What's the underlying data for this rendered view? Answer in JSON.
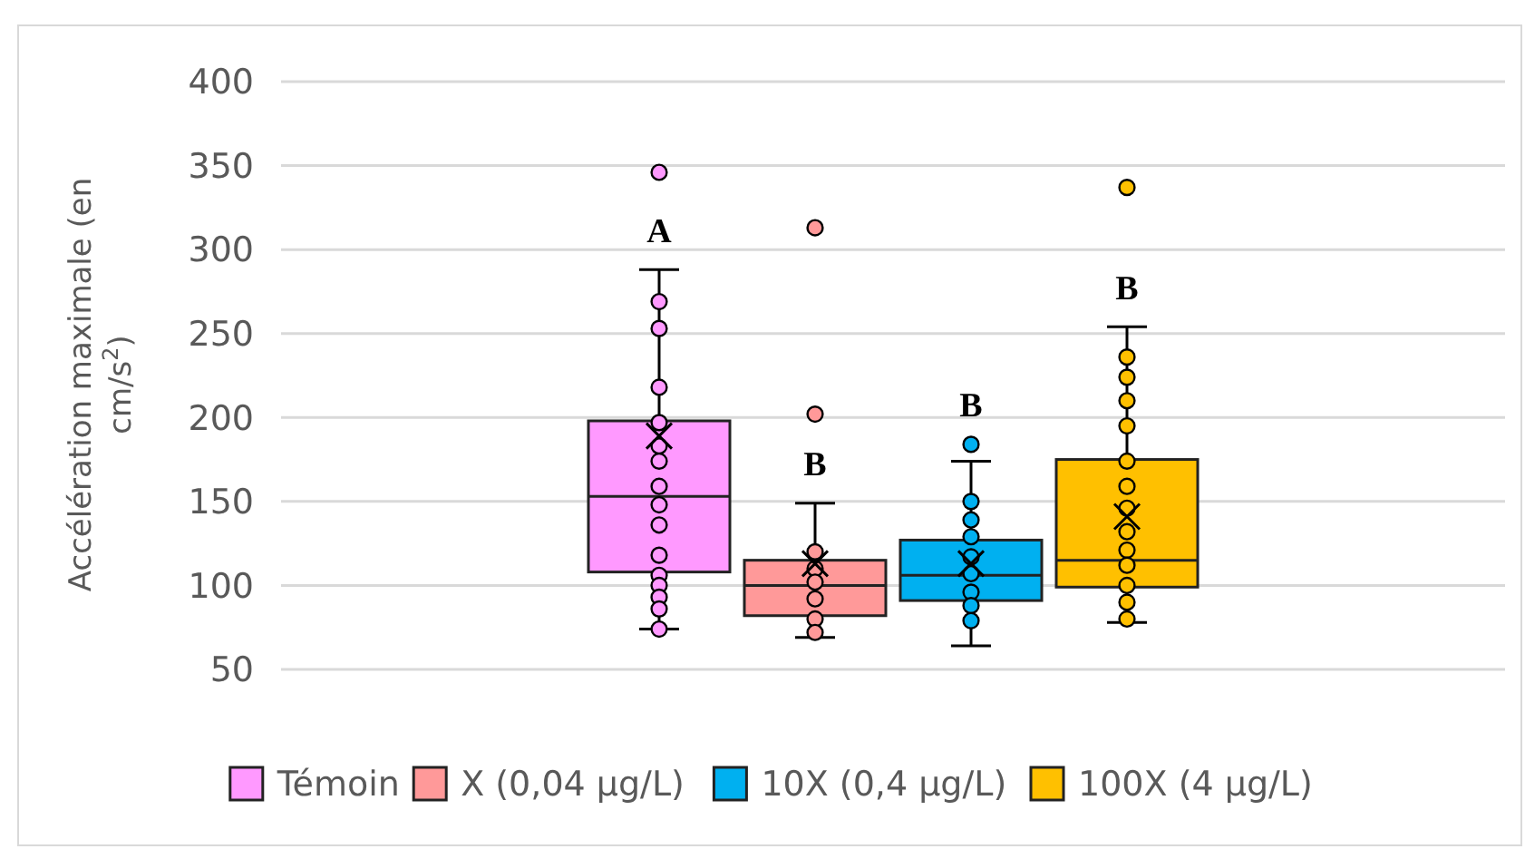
{
  "chart_data": {
    "type": "box",
    "ylabel": "Accélération maximale (en cm/s$^{2}$)",
    "categories": [
      null
    ],
    "ylim": [
      50,
      400
    ],
    "yticks": [
      50,
      100,
      150,
      200,
      250,
      300,
      350,
      400
    ],
    "grid": "y",
    "legend": "bottom",
    "marker": "circle",
    "series": [
      {
        "name": "Témoin",
        "color": "#ff99ff",
        "boxes": [
          {
            "low": 74,
            "q1": 108,
            "median": 153,
            "q3": 198,
            "high": 288,
            "mean": 189,
            "outliers": [
              346,
              269,
              253,
              218,
              197,
              183,
              174,
              159,
              148,
              136,
              118,
              106,
              100,
              93,
              86,
              74
            ]
          }
        ]
      },
      {
        "name": "X (0,04 µg/L)",
        "color": "#ff9999",
        "boxes": [
          {
            "low": 69,
            "q1": 82,
            "median": 100,
            "q3": 115,
            "high": 149,
            "mean": 113,
            "outliers": [
              313,
              202,
              120,
              110,
              102,
              92,
              80,
              72
            ]
          }
        ]
      },
      {
        "name": "10X (0,4 µg/L)",
        "color": "#00b0f0",
        "boxes": [
          {
            "low": 64,
            "q1": 91,
            "median": 106,
            "q3": 127,
            "high": 174,
            "mean": 113,
            "outliers": [
              184,
              150,
              139,
              129,
              117,
              107,
              96,
              88,
              79
            ]
          }
        ]
      },
      {
        "name": "100X (4 µg/L)",
        "color": "#ffc000",
        "boxes": [
          {
            "low": 78,
            "q1": 99,
            "median": 115,
            "q3": 175,
            "high": 254,
            "mean": 141,
            "outliers": [
              337,
              236,
              224,
              210,
              195,
              174,
              159,
              146,
              132,
              121,
              112,
              100,
              90,
              80
            ]
          }
        ]
      }
    ],
    "annotations": [
      "A",
      "B",
      "B",
      "B"
    ]
  }
}
